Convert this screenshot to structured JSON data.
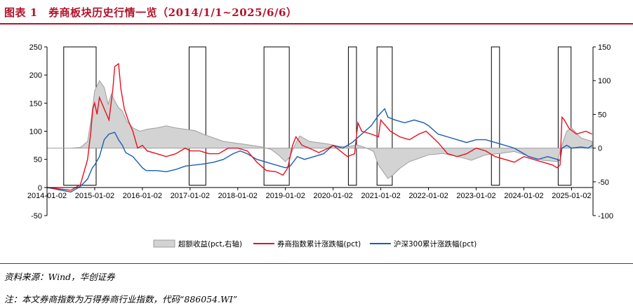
{
  "page": {
    "title": "图表 1　券商板块历史行情一览（2014/1/1~2025/6/6）",
    "source": "资料来源：Wind，华创证券",
    "note": "注：本文券商指数为万得券商行业指数，代码“886054.WI”"
  },
  "colors": {
    "title": "#b3122a",
    "excess_fill": "#d3d3d3",
    "excess_stroke": "#9e9e9e",
    "broker": "#e8101f",
    "hs300": "#1a5eb4",
    "box": "#000000"
  },
  "chart_data": {
    "type": "line",
    "title": "券商板块历史行情一览（2014/1/1~2025/6/6）",
    "x_range": [
      "2014-01-02",
      "2025-06-06"
    ],
    "x_tick_labels": [
      "2014-01-02",
      "2015-01-02",
      "2016-01-02",
      "2017-01-02",
      "2018-01-02",
      "2019-01-02",
      "2020-01-02",
      "2021-01-02",
      "2022-01-02",
      "2023-01-02",
      "2024-01-02",
      "2025-01-02"
    ],
    "x_tick_dates": [
      2014.0,
      2015.0,
      2016.0,
      2017.0,
      2018.0,
      2019.0,
      2020.0,
      2021.0,
      2022.0,
      2023.0,
      2024.0,
      2025.0
    ],
    "left_axis": {
      "ylim": [
        -50,
        250
      ],
      "ticks": [
        -50,
        0,
        50,
        100,
        150,
        200,
        250
      ]
    },
    "right_axis": {
      "ylim": [
        -100,
        150
      ],
      "ticks": [
        -100,
        -50,
        0,
        50,
        100,
        150
      ]
    },
    "highlight_periods": [
      [
        2014.35,
        2015.03
      ],
      [
        2016.98,
        2017.33
      ],
      [
        2018.55,
        2019.08
      ],
      [
        2020.32,
        2020.49
      ],
      [
        2020.92,
        2021.24
      ],
      [
        2023.32,
        2023.49
      ],
      [
        2024.72,
        2024.99
      ]
    ],
    "series": [
      {
        "name": "超额收益(pct,右轴)",
        "kind": "area",
        "axis": "right",
        "x": [
          2014.0,
          2014.3,
          2014.5,
          2014.7,
          2014.85,
          2014.93,
          2015.0,
          2015.1,
          2015.2,
          2015.28,
          2015.35,
          2015.42,
          2015.5,
          2015.58,
          2015.67,
          2015.8,
          2015.95,
          2016.1,
          2016.3,
          2016.5,
          2016.7,
          2016.9,
          2017.1,
          2017.3,
          2017.5,
          2017.7,
          2017.9,
          2018.1,
          2018.3,
          2018.5,
          2018.7,
          2018.85,
          2019.0,
          2019.1,
          2019.2,
          2019.3,
          2019.5,
          2019.7,
          2019.9,
          2020.1,
          2020.3,
          2020.5,
          2020.7,
          2020.85,
          2020.95,
          2021.05,
          2021.15,
          2021.25,
          2021.4,
          2021.6,
          2021.8,
          2022.0,
          2022.3,
          2022.6,
          2022.9,
          2023.2,
          2023.5,
          2023.8,
          2024.1,
          2024.4,
          2024.7,
          2024.8,
          2024.9,
          2025.0,
          2025.2,
          2025.43
        ],
        "values": [
          0,
          0,
          0,
          1,
          10,
          45,
          85,
          100,
          90,
          65,
          80,
          70,
          60,
          55,
          40,
          30,
          25,
          28,
          30,
          33,
          30,
          28,
          26,
          20,
          15,
          10,
          8,
          6,
          4,
          2,
          -2,
          -10,
          -20,
          -12,
          5,
          18,
          10,
          8,
          6,
          3,
          2,
          5,
          0,
          -5,
          -25,
          -35,
          -45,
          -40,
          -30,
          -20,
          -15,
          -10,
          -8,
          -12,
          -18,
          -10,
          -8,
          -5,
          -12,
          -18,
          -20,
          5,
          25,
          30,
          15,
          10
        ]
      },
      {
        "name": "券商指数累计涨跌幅(pct)",
        "kind": "line",
        "axis": "left",
        "x": [
          2014.0,
          2014.3,
          2014.5,
          2014.7,
          2014.85,
          2014.92,
          2014.96,
          2015.0,
          2015.05,
          2015.1,
          2015.2,
          2015.3,
          2015.38,
          2015.42,
          2015.5,
          2015.55,
          2015.62,
          2015.7,
          2015.8,
          2015.9,
          2016.0,
          2016.1,
          2016.3,
          2016.5,
          2016.7,
          2016.9,
          2017.0,
          2017.2,
          2017.4,
          2017.6,
          2017.8,
          2018.0,
          2018.2,
          2018.4,
          2018.6,
          2018.8,
          2018.95,
          2019.05,
          2019.15,
          2019.22,
          2019.35,
          2019.5,
          2019.7,
          2019.9,
          2020.0,
          2020.3,
          2020.45,
          2020.52,
          2020.6,
          2020.8,
          2020.95,
          2021.0,
          2021.2,
          2021.4,
          2021.6,
          2021.8,
          2021.95,
          2022.2,
          2022.4,
          2022.6,
          2022.8,
          2023.0,
          2023.2,
          2023.4,
          2023.6,
          2023.8,
          2024.0,
          2024.2,
          2024.4,
          2024.6,
          2024.7,
          2024.76,
          2024.8,
          2024.85,
          2024.95,
          2025.1,
          2025.3,
          2025.43
        ],
        "values": [
          0,
          -3,
          -5,
          5,
          50,
          100,
          140,
          150,
          130,
          160,
          140,
          120,
          175,
          215,
          220,
          175,
          140,
          120,
          100,
          70,
          75,
          65,
          60,
          55,
          60,
          70,
          65,
          65,
          60,
          60,
          70,
          70,
          65,
          45,
          30,
          28,
          22,
          35,
          75,
          90,
          75,
          70,
          62,
          70,
          75,
          55,
          60,
          115,
          100,
          95,
          90,
          120,
          100,
          90,
          85,
          95,
          100,
          80,
          60,
          55,
          60,
          70,
          65,
          55,
          50,
          45,
          55,
          50,
          45,
          40,
          35,
          40,
          125,
          120,
          105,
          95,
          100,
          95
        ]
      },
      {
        "name": "沪深300累计涨跌幅(pct)",
        "kind": "line",
        "axis": "left",
        "x": [
          2014.0,
          2014.3,
          2014.5,
          2014.7,
          2014.85,
          2014.95,
          2015.0,
          2015.1,
          2015.2,
          2015.3,
          2015.42,
          2015.5,
          2015.58,
          2015.65,
          2015.8,
          2015.9,
          2016.0,
          2016.08,
          2016.3,
          2016.5,
          2016.7,
          2016.9,
          2017.1,
          2017.3,
          2017.5,
          2017.7,
          2017.9,
          2018.05,
          2018.2,
          2018.4,
          2018.6,
          2018.8,
          2019.0,
          2019.1,
          2019.25,
          2019.4,
          2019.6,
          2019.8,
          2020.0,
          2020.2,
          2020.4,
          2020.6,
          2020.8,
          2020.95,
          2021.08,
          2021.15,
          2021.3,
          2021.5,
          2021.7,
          2021.9,
          2022.0,
          2022.2,
          2022.4,
          2022.6,
          2022.8,
          2023.0,
          2023.2,
          2023.4,
          2023.6,
          2023.8,
          2024.0,
          2024.1,
          2024.3,
          2024.5,
          2024.7,
          2024.76,
          2024.8,
          2024.9,
          2025.0,
          2025.2,
          2025.35,
          2025.43
        ],
        "values": [
          0,
          -5,
          -8,
          2,
          15,
          35,
          40,
          55,
          85,
          95,
          98,
          85,
          75,
          62,
          55,
          45,
          35,
          30,
          30,
          28,
          32,
          38,
          40,
          42,
          45,
          50,
          60,
          65,
          60,
          50,
          45,
          40,
          35,
          38,
          55,
          50,
          55,
          60,
          75,
          70,
          80,
          95,
          110,
          128,
          140,
          125,
          120,
          115,
          120,
          115,
          110,
          95,
          90,
          85,
          80,
          85,
          85,
          80,
          75,
          70,
          60,
          55,
          50,
          55,
          50,
          48,
          70,
          75,
          70,
          72,
          70,
          75
        ]
      }
    ]
  },
  "legend": [
    {
      "label": "超额收益(pct,右轴)",
      "kind": "area"
    },
    {
      "label": "券商指数累计涨跌幅(pct)",
      "kind": "line-red"
    },
    {
      "label": "沪深300累计涨跌幅(pct)",
      "kind": "line-blue"
    }
  ]
}
